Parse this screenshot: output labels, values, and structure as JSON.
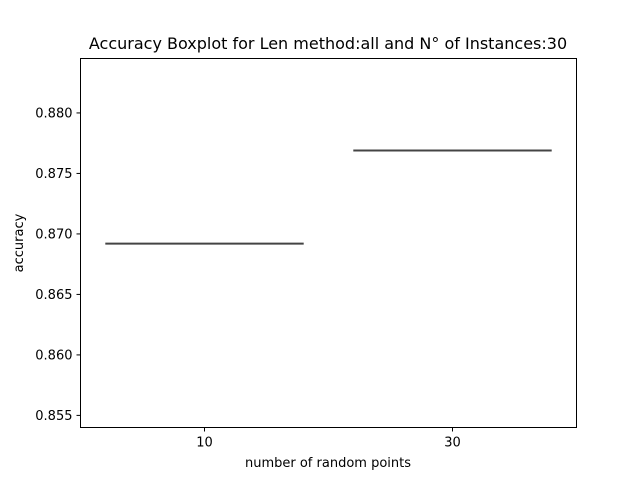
{
  "chart_data": {
    "type": "box",
    "title": "Accuracy Boxplot for Len method:all and N° of Instances:30",
    "xlabel": "number of random points",
    "ylabel": "accuracy",
    "categories": [
      "10",
      "30"
    ],
    "values": [
      0.8692,
      0.8769
    ],
    "ylim": [
      0.854,
      0.8845
    ],
    "yticks": [
      0.855,
      0.86,
      0.865,
      0.87,
      0.875,
      0.88
    ],
    "ytick_labels": [
      "0.855",
      "0.860",
      "0.865",
      "0.870",
      "0.875",
      "0.880"
    ],
    "grid": false,
    "legend": "none",
    "box_color": "#444444"
  }
}
